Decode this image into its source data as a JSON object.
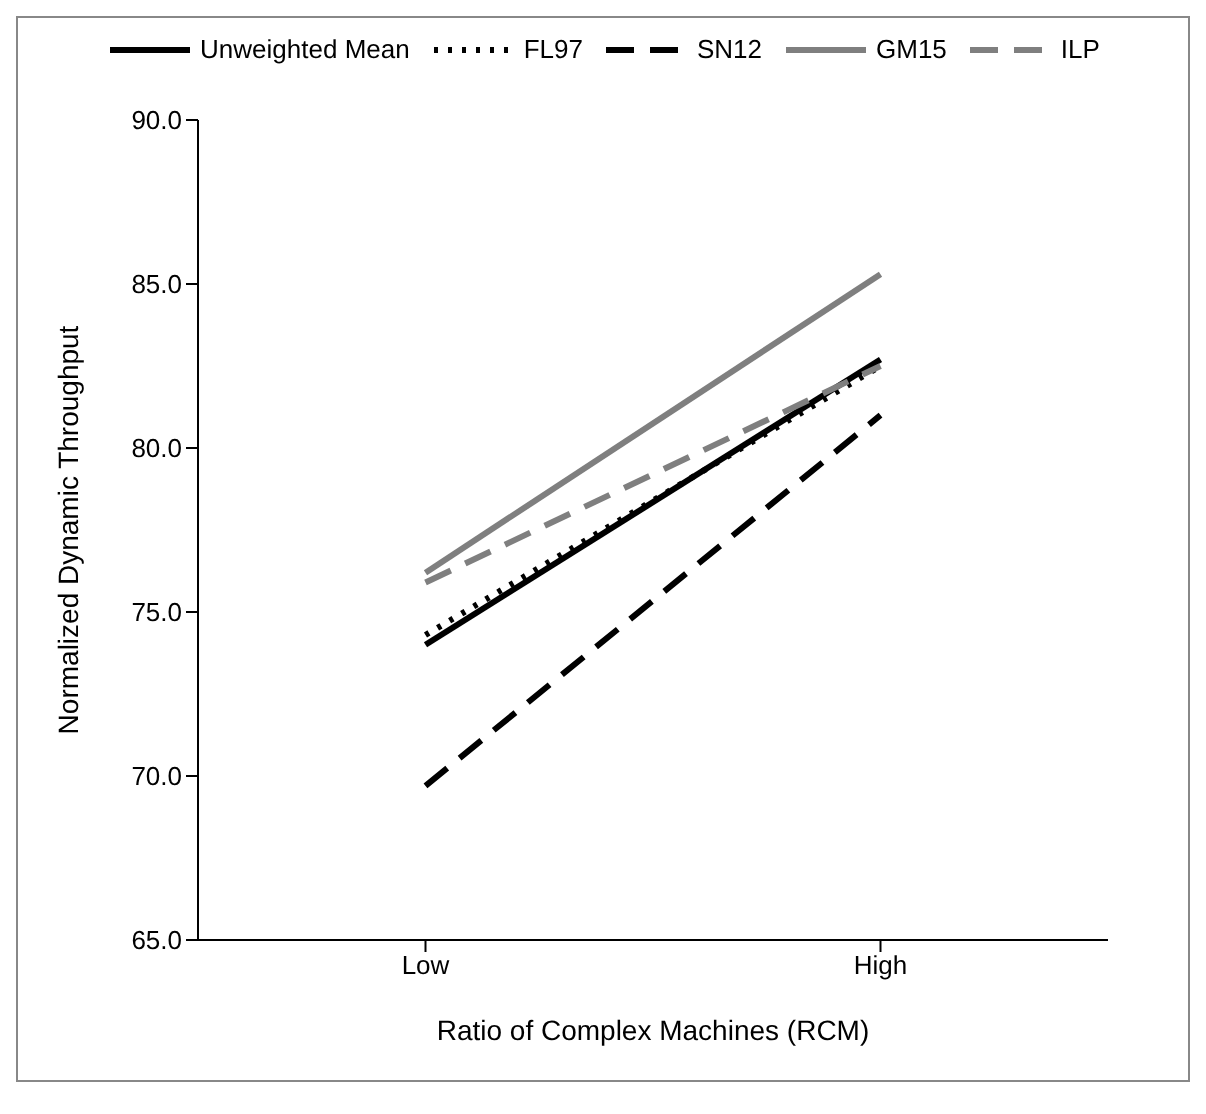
{
  "chart_data": {
    "type": "line",
    "xlabel": "Ratio of Complex Machines (RCM)",
    "ylabel": "Normalized Dynamic Throughput",
    "categories": [
      "Low",
      "High"
    ],
    "series": [
      {
        "name": "Unweighted Mean",
        "color": "#000000",
        "values": [
          74.0,
          82.7
        ],
        "line_style": "solid"
      },
      {
        "name": "FL97",
        "color": "#000000",
        "values": [
          74.3,
          82.5
        ],
        "line_style": "dotted"
      },
      {
        "name": "SN12",
        "color": "#000000",
        "values": [
          69.7,
          81.0
        ],
        "line_style": "dashed"
      },
      {
        "name": "GM15",
        "color": "#7f7f7f",
        "values": [
          76.2,
          85.3
        ],
        "line_style": "solid"
      },
      {
        "name": "ILP",
        "color": "#7f7f7f",
        "values": [
          75.9,
          82.5
        ],
        "line_style": "dashed"
      }
    ],
    "ylim": [
      65,
      90
    ],
    "yticks": [
      {
        "value": 65,
        "label": "65.0"
      },
      {
        "value": 70,
        "label": "70.0"
      },
      {
        "value": 75,
        "label": "75.0"
      },
      {
        "value": 80,
        "label": "80.0"
      },
      {
        "value": 85,
        "label": "85.0"
      },
      {
        "value": 90,
        "label": "90.0"
      }
    ],
    "grid": false,
    "legend": "top",
    "marker": "none"
  }
}
